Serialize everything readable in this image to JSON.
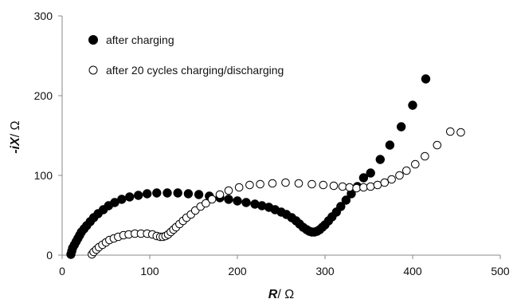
{
  "chart_data": {
    "type": "scatter",
    "xlabel_prefix": "R",
    "xlabel_suffix": "/ Ω",
    "ylabel_prefix": "-iX",
    "ylabel_suffix": "/ Ω",
    "xlim": [
      0,
      500
    ],
    "ylim": [
      0,
      300
    ],
    "xticks": [
      "0",
      "100",
      "200",
      "300",
      "400",
      "500"
    ],
    "yticks": [
      "0",
      "100",
      "200",
      "300"
    ],
    "grid": false,
    "legend_position": "top-left",
    "series": [
      {
        "name": "after charging",
        "marker": "filled-circle",
        "color": "#000000",
        "points": [
          [
            10,
            1
          ],
          [
            11,
            5
          ],
          [
            12,
            9
          ],
          [
            14,
            13
          ],
          [
            16,
            17
          ],
          [
            18,
            21
          ],
          [
            20,
            25
          ],
          [
            22,
            29
          ],
          [
            25,
            33
          ],
          [
            28,
            37
          ],
          [
            32,
            42
          ],
          [
            36,
            47
          ],
          [
            41,
            52
          ],
          [
            47,
            57
          ],
          [
            53,
            62
          ],
          [
            60,
            66
          ],
          [
            68,
            70
          ],
          [
            77,
            73
          ],
          [
            87,
            75
          ],
          [
            97,
            77
          ],
          [
            108,
            78
          ],
          [
            120,
            78
          ],
          [
            132,
            78
          ],
          [
            144,
            77
          ],
          [
            156,
            76
          ],
          [
            168,
            74
          ],
          [
            180,
            72
          ],
          [
            190,
            70
          ],
          [
            200,
            68
          ],
          [
            210,
            66
          ],
          [
            220,
            64
          ],
          [
            228,
            62
          ],
          [
            236,
            60
          ],
          [
            243,
            57
          ],
          [
            250,
            54
          ],
          [
            256,
            51
          ],
          [
            262,
            47
          ],
          [
            267,
            43
          ],
          [
            271,
            39
          ],
          [
            275,
            35
          ],
          [
            279,
            32
          ],
          [
            282,
            30
          ],
          [
            285,
            29
          ],
          [
            288,
            29
          ],
          [
            291,
            30
          ],
          [
            294,
            32
          ],
          [
            297,
            35
          ],
          [
            300,
            38
          ],
          [
            304,
            43
          ],
          [
            308,
            48
          ],
          [
            313,
            54
          ],
          [
            318,
            61
          ],
          [
            324,
            69
          ],
          [
            330,
            77
          ],
          [
            337,
            86
          ],
          [
            344,
            97
          ],
          [
            352,
            103
          ],
          [
            363,
            120
          ],
          [
            374,
            138
          ],
          [
            387,
            161
          ],
          [
            400,
            188
          ],
          [
            415,
            221
          ]
        ]
      },
      {
        "name": "after 20 cycles charging/discharging",
        "marker": "open-circle",
        "color": "#000000",
        "points": [
          [
            34,
            1
          ],
          [
            36,
            4
          ],
          [
            39,
            7
          ],
          [
            42,
            10
          ],
          [
            46,
            13
          ],
          [
            50,
            16
          ],
          [
            54,
            19
          ],
          [
            59,
            21
          ],
          [
            64,
            23
          ],
          [
            70,
            25
          ],
          [
            76,
            26
          ],
          [
            83,
            27
          ],
          [
            90,
            27
          ],
          [
            97,
            27
          ],
          [
            103,
            26
          ],
          [
            108,
            24
          ],
          [
            112,
            23
          ],
          [
            115,
            23
          ],
          [
            118,
            24
          ],
          [
            121,
            26
          ],
          [
            124,
            29
          ],
          [
            127,
            32
          ],
          [
            130,
            35
          ],
          [
            134,
            39
          ],
          [
            138,
            43
          ],
          [
            142,
            47
          ],
          [
            147,
            51
          ],
          [
            152,
            56
          ],
          [
            158,
            61
          ],
          [
            164,
            65
          ],
          [
            171,
            70
          ],
          [
            180,
            76
          ],
          [
            190,
            81
          ],
          [
            202,
            85
          ],
          [
            214,
            88
          ],
          [
            226,
            89
          ],
          [
            240,
            90
          ],
          [
            255,
            91
          ],
          [
            270,
            90
          ],
          [
            285,
            89
          ],
          [
            298,
            88
          ],
          [
            310,
            87
          ],
          [
            320,
            86
          ],
          [
            328,
            85
          ],
          [
            336,
            84
          ],
          [
            344,
            85
          ],
          [
            352,
            86
          ],
          [
            360,
            88
          ],
          [
            368,
            91
          ],
          [
            376,
            95
          ],
          [
            385,
            100
          ],
          [
            393,
            106
          ],
          [
            403,
            114
          ],
          [
            414,
            124
          ],
          [
            428,
            138
          ],
          [
            443,
            155
          ],
          [
            455,
            154
          ]
        ]
      }
    ]
  }
}
